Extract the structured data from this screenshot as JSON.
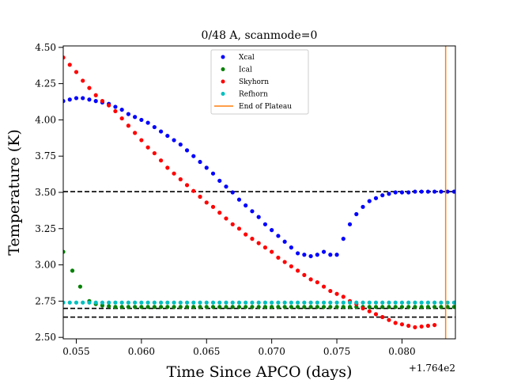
{
  "chart_data": {
    "type": "scatter",
    "title": "0/48 A, scanmode=0",
    "xlabel": "Time Since APCO (days)",
    "ylabel": "Temperature (K)",
    "x_offset_label": "+1.764e2",
    "xlim": [
      0.054,
      0.0841
    ],
    "ylim": [
      2.49,
      4.51
    ],
    "x_ticks": [
      0.055,
      0.06,
      0.065,
      0.07,
      0.075,
      0.08
    ],
    "x_tick_labels": [
      "0.055",
      "0.060",
      "0.065",
      "0.070",
      "0.075",
      "0.080"
    ],
    "y_ticks": [
      2.5,
      2.75,
      3.0,
      3.25,
      3.5,
      3.75,
      4.0,
      4.25,
      4.5
    ],
    "y_tick_labels": [
      "2.50",
      "2.75",
      "3.00",
      "3.25",
      "3.50",
      "3.75",
      "4.00",
      "4.25",
      "4.50"
    ],
    "legend_position": "top-center",
    "series": [
      {
        "name": "Xcal",
        "color": "#0000ff",
        "points": [
          [
            0.054,
            4.13
          ],
          [
            0.0545,
            4.14
          ],
          [
            0.055,
            4.15
          ],
          [
            0.0555,
            4.15
          ],
          [
            0.056,
            4.14
          ],
          [
            0.0565,
            4.13
          ],
          [
            0.057,
            4.12
          ],
          [
            0.0575,
            4.11
          ],
          [
            0.058,
            4.09
          ],
          [
            0.0585,
            4.07
          ],
          [
            0.059,
            4.04
          ],
          [
            0.0595,
            4.02
          ],
          [
            0.06,
            4.0
          ],
          [
            0.0605,
            3.98
          ],
          [
            0.061,
            3.95
          ],
          [
            0.0615,
            3.92
          ],
          [
            0.062,
            3.89
          ],
          [
            0.0625,
            3.86
          ],
          [
            0.063,
            3.83
          ],
          [
            0.0635,
            3.79
          ],
          [
            0.064,
            3.75
          ],
          [
            0.0645,
            3.71
          ],
          [
            0.065,
            3.67
          ],
          [
            0.0655,
            3.63
          ],
          [
            0.066,
            3.58
          ],
          [
            0.0665,
            3.54
          ],
          [
            0.067,
            3.5
          ],
          [
            0.0675,
            3.45
          ],
          [
            0.068,
            3.41
          ],
          [
            0.0685,
            3.37
          ],
          [
            0.069,
            3.33
          ],
          [
            0.0695,
            3.28
          ],
          [
            0.07,
            3.24
          ],
          [
            0.0705,
            3.2
          ],
          [
            0.071,
            3.16
          ],
          [
            0.0715,
            3.12
          ],
          [
            0.072,
            3.08
          ],
          [
            0.0725,
            3.07
          ],
          [
            0.073,
            3.06
          ],
          [
            0.0735,
            3.07
          ],
          [
            0.074,
            3.09
          ],
          [
            0.0745,
            3.07
          ],
          [
            0.075,
            3.07
          ],
          [
            0.0755,
            3.18
          ],
          [
            0.076,
            3.28
          ],
          [
            0.0765,
            3.35
          ],
          [
            0.077,
            3.4
          ],
          [
            0.0775,
            3.44
          ],
          [
            0.078,
            3.46
          ],
          [
            0.0785,
            3.48
          ],
          [
            0.079,
            3.49
          ],
          [
            0.0795,
            3.5
          ],
          [
            0.08,
            3.5
          ],
          [
            0.0805,
            3.5
          ],
          [
            0.081,
            3.505
          ],
          [
            0.0815,
            3.505
          ],
          [
            0.082,
            3.505
          ],
          [
            0.0825,
            3.505
          ],
          [
            0.083,
            3.505
          ],
          [
            0.0835,
            3.505
          ],
          [
            0.084,
            3.505
          ]
        ]
      },
      {
        "name": "Ical",
        "color": "#008000",
        "points": [
          [
            0.054,
            3.09
          ],
          [
            0.0547,
            2.96
          ],
          [
            0.0553,
            2.85
          ],
          [
            0.056,
            2.75
          ],
          [
            0.0565,
            2.73
          ],
          [
            0.057,
            2.72
          ],
          [
            0.0575,
            2.715
          ],
          [
            0.058,
            2.71
          ],
          [
            0.0585,
            2.71
          ],
          [
            0.059,
            2.71
          ],
          [
            0.0595,
            2.71
          ],
          [
            0.06,
            2.71
          ],
          [
            0.0605,
            2.71
          ],
          [
            0.061,
            2.71
          ],
          [
            0.0615,
            2.71
          ],
          [
            0.062,
            2.71
          ],
          [
            0.0625,
            2.71
          ],
          [
            0.063,
            2.71
          ],
          [
            0.0635,
            2.71
          ],
          [
            0.064,
            2.71
          ],
          [
            0.0645,
            2.71
          ],
          [
            0.065,
            2.71
          ],
          [
            0.0655,
            2.71
          ],
          [
            0.066,
            2.71
          ],
          [
            0.0665,
            2.71
          ],
          [
            0.067,
            2.71
          ],
          [
            0.0675,
            2.71
          ],
          [
            0.068,
            2.71
          ],
          [
            0.0685,
            2.71
          ],
          [
            0.069,
            2.71
          ],
          [
            0.0695,
            2.71
          ],
          [
            0.07,
            2.71
          ],
          [
            0.0705,
            2.71
          ],
          [
            0.071,
            2.71
          ],
          [
            0.0715,
            2.71
          ],
          [
            0.072,
            2.71
          ],
          [
            0.0725,
            2.71
          ],
          [
            0.073,
            2.71
          ],
          [
            0.0735,
            2.71
          ],
          [
            0.074,
            2.71
          ],
          [
            0.0745,
            2.71
          ],
          [
            0.075,
            2.71
          ],
          [
            0.0755,
            2.71
          ],
          [
            0.076,
            2.71
          ],
          [
            0.0765,
            2.71
          ],
          [
            0.077,
            2.71
          ],
          [
            0.0775,
            2.71
          ],
          [
            0.078,
            2.71
          ],
          [
            0.0785,
            2.71
          ],
          [
            0.079,
            2.71
          ],
          [
            0.0795,
            2.71
          ],
          [
            0.08,
            2.71
          ],
          [
            0.0805,
            2.71
          ],
          [
            0.081,
            2.71
          ],
          [
            0.0815,
            2.71
          ],
          [
            0.082,
            2.71
          ],
          [
            0.0825,
            2.71
          ],
          [
            0.083,
            2.71
          ],
          [
            0.0835,
            2.71
          ],
          [
            0.084,
            2.71
          ]
        ]
      },
      {
        "name": "Skyhorn",
        "color": "#ff0000",
        "points": [
          [
            0.054,
            4.43
          ],
          [
            0.0545,
            4.38
          ],
          [
            0.055,
            4.33
          ],
          [
            0.0555,
            4.27
          ],
          [
            0.056,
            4.22
          ],
          [
            0.0565,
            4.17
          ],
          [
            0.057,
            4.13
          ],
          [
            0.0575,
            4.1
          ],
          [
            0.058,
            4.06
          ],
          [
            0.0585,
            4.01
          ],
          [
            0.059,
            3.96
          ],
          [
            0.0595,
            3.91
          ],
          [
            0.06,
            3.86
          ],
          [
            0.0605,
            3.81
          ],
          [
            0.061,
            3.77
          ],
          [
            0.0615,
            3.72
          ],
          [
            0.062,
            3.67
          ],
          [
            0.0625,
            3.63
          ],
          [
            0.063,
            3.59
          ],
          [
            0.0635,
            3.55
          ],
          [
            0.064,
            3.51
          ],
          [
            0.0645,
            3.47
          ],
          [
            0.065,
            3.43
          ],
          [
            0.0655,
            3.4
          ],
          [
            0.066,
            3.36
          ],
          [
            0.0665,
            3.32
          ],
          [
            0.067,
            3.28
          ],
          [
            0.0675,
            3.25
          ],
          [
            0.068,
            3.21
          ],
          [
            0.0685,
            3.18
          ],
          [
            0.069,
            3.15
          ],
          [
            0.0695,
            3.12
          ],
          [
            0.07,
            3.09
          ],
          [
            0.0705,
            3.05
          ],
          [
            0.071,
            3.02
          ],
          [
            0.0715,
            2.99
          ],
          [
            0.072,
            2.96
          ],
          [
            0.0725,
            2.93
          ],
          [
            0.073,
            2.9
          ],
          [
            0.0735,
            2.88
          ],
          [
            0.074,
            2.85
          ],
          [
            0.0745,
            2.82
          ],
          [
            0.075,
            2.8
          ],
          [
            0.0755,
            2.78
          ],
          [
            0.076,
            2.75
          ],
          [
            0.0765,
            2.73
          ],
          [
            0.077,
            2.7
          ],
          [
            0.0775,
            2.68
          ],
          [
            0.078,
            2.66
          ],
          [
            0.0785,
            2.64
          ],
          [
            0.079,
            2.62
          ],
          [
            0.0795,
            2.6
          ],
          [
            0.08,
            2.59
          ],
          [
            0.0805,
            2.58
          ],
          [
            0.081,
            2.57
          ],
          [
            0.0815,
            2.575
          ],
          [
            0.082,
            2.58
          ],
          [
            0.0825,
            2.585
          ]
        ]
      },
      {
        "name": "Refhorn",
        "color": "#00bfbf",
        "points": [
          [
            0.054,
            2.74
          ],
          [
            0.0545,
            2.74
          ],
          [
            0.055,
            2.74
          ],
          [
            0.0555,
            2.74
          ],
          [
            0.056,
            2.74
          ],
          [
            0.0565,
            2.74
          ],
          [
            0.057,
            2.74
          ],
          [
            0.0575,
            2.74
          ],
          [
            0.058,
            2.74
          ],
          [
            0.0585,
            2.74
          ],
          [
            0.059,
            2.74
          ],
          [
            0.0595,
            2.74
          ],
          [
            0.06,
            2.74
          ],
          [
            0.0605,
            2.74
          ],
          [
            0.061,
            2.74
          ],
          [
            0.0615,
            2.74
          ],
          [
            0.062,
            2.74
          ],
          [
            0.0625,
            2.74
          ],
          [
            0.063,
            2.74
          ],
          [
            0.0635,
            2.74
          ],
          [
            0.064,
            2.74
          ],
          [
            0.0645,
            2.74
          ],
          [
            0.065,
            2.74
          ],
          [
            0.0655,
            2.74
          ],
          [
            0.066,
            2.74
          ],
          [
            0.0665,
            2.74
          ],
          [
            0.067,
            2.74
          ],
          [
            0.0675,
            2.74
          ],
          [
            0.068,
            2.74
          ],
          [
            0.0685,
            2.74
          ],
          [
            0.069,
            2.74
          ],
          [
            0.0695,
            2.74
          ],
          [
            0.07,
            2.74
          ],
          [
            0.0705,
            2.74
          ],
          [
            0.071,
            2.74
          ],
          [
            0.0715,
            2.74
          ],
          [
            0.072,
            2.74
          ],
          [
            0.0725,
            2.74
          ],
          [
            0.073,
            2.74
          ],
          [
            0.0735,
            2.74
          ],
          [
            0.074,
            2.74
          ],
          [
            0.0745,
            2.74
          ],
          [
            0.075,
            2.74
          ],
          [
            0.0755,
            2.74
          ],
          [
            0.076,
            2.74
          ],
          [
            0.0765,
            2.74
          ],
          [
            0.077,
            2.74
          ],
          [
            0.0775,
            2.74
          ],
          [
            0.078,
            2.74
          ],
          [
            0.0785,
            2.74
          ],
          [
            0.079,
            2.74
          ],
          [
            0.0795,
            2.74
          ],
          [
            0.08,
            2.74
          ],
          [
            0.0805,
            2.74
          ],
          [
            0.081,
            2.74
          ],
          [
            0.0815,
            2.74
          ],
          [
            0.082,
            2.74
          ],
          [
            0.0825,
            2.74
          ],
          [
            0.083,
            2.74
          ],
          [
            0.0835,
            2.74
          ],
          [
            0.084,
            2.74
          ]
        ]
      }
    ],
    "vertical_line": {
      "name": "End of Plateau",
      "color": "#ff7f0e",
      "x": 0.08335
    },
    "reference_lines": [
      {
        "y": 3.505,
        "style": "dashed",
        "color": "#000000"
      },
      {
        "y": 2.7,
        "style": "dashed",
        "color": "#000000"
      },
      {
        "y": 2.64,
        "style": "dashed",
        "color": "#000000"
      }
    ]
  }
}
